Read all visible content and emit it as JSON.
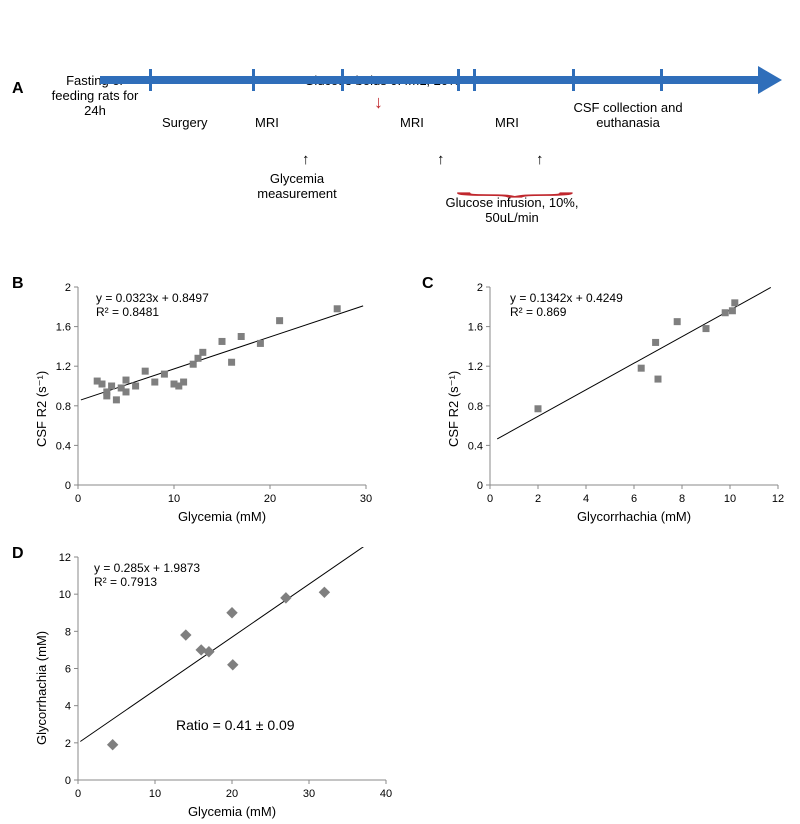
{
  "panelA": {
    "label": "A",
    "tick_positions_pct": [
      8,
      24,
      37,
      55,
      58,
      72,
      85
    ],
    "top_labels": {
      "fasting": "Fasting or\nfeeding  rats\nfor 24h",
      "surgery": "Surgery",
      "mri1": "MRI",
      "bolus": "Glucose bolus 0.4mL, 20%",
      "mri2": "MRI",
      "mri3": "MRI",
      "csf": "CSF collection and\neuthanasia"
    },
    "bottom_labels": {
      "glycemia_measurement": "Glycemia\nmeasurement",
      "glucose_infusion": "Glucose infusion, 10%,\n50uL/min"
    }
  },
  "panelB": {
    "label": "B",
    "type": "scatter",
    "x_label": "Glycemia (mM)",
    "y_label": "CSF R2 (s⁻¹)",
    "xlim": [
      0,
      30
    ],
    "xticks": [
      0,
      10,
      20,
      30
    ],
    "ylim": [
      0,
      2
    ],
    "yticks": [
      0,
      0.4,
      0.8,
      1.2,
      1.6,
      2
    ],
    "marker": "square",
    "marker_color": "#7f7f7f",
    "marker_size": 7,
    "line_color": "#000000",
    "fit": {
      "slope": 0.0323,
      "intercept": 0.8497,
      "r2": 0.8481
    },
    "eq_text": "y = 0.0323x + 0.8497",
    "r2_text": "R² = 0.8481",
    "points": [
      [
        2,
        1.05
      ],
      [
        2.5,
        1.02
      ],
      [
        3,
        0.94
      ],
      [
        3,
        0.9
      ],
      [
        3.5,
        1.0
      ],
      [
        4,
        0.86
      ],
      [
        4.5,
        0.98
      ],
      [
        5,
        0.94
      ],
      [
        5,
        1.06
      ],
      [
        6,
        1.0
      ],
      [
        7,
        1.15
      ],
      [
        8,
        1.04
      ],
      [
        9,
        1.12
      ],
      [
        10,
        1.02
      ],
      [
        10.5,
        1.0
      ],
      [
        11,
        1.04
      ],
      [
        12,
        1.22
      ],
      [
        12.5,
        1.28
      ],
      [
        13,
        1.34
      ],
      [
        15,
        1.45
      ],
      [
        16,
        1.24
      ],
      [
        17,
        1.5
      ],
      [
        19,
        1.43
      ],
      [
        21,
        1.66
      ],
      [
        27,
        1.78
      ]
    ]
  },
  "panelC": {
    "label": "C",
    "type": "scatter",
    "x_label": "Glycorrhachia (mM)",
    "y_label": "CSF R2 (s⁻¹)",
    "xlim": [
      0,
      12
    ],
    "xticks": [
      0,
      2,
      4,
      6,
      8,
      10,
      12
    ],
    "ylim": [
      0,
      2
    ],
    "yticks": [
      0,
      0.4,
      0.8,
      1.2,
      1.6,
      2
    ],
    "marker": "square",
    "marker_color": "#7f7f7f",
    "marker_size": 7,
    "line_color": "#000000",
    "fit": {
      "slope": 0.1342,
      "intercept": 0.4249,
      "r2": 0.869
    },
    "eq_text": "y = 0.1342x + 0.4249",
    "r2_text": "R² = 0.869",
    "points": [
      [
        2,
        0.77
      ],
      [
        6.3,
        1.18
      ],
      [
        6.9,
        1.44
      ],
      [
        7.0,
        1.07
      ],
      [
        7.8,
        1.65
      ],
      [
        9.0,
        1.58
      ],
      [
        9.8,
        1.74
      ],
      [
        10.1,
        1.76
      ],
      [
        10.2,
        1.84
      ]
    ]
  },
  "panelD": {
    "label": "D",
    "type": "scatter",
    "x_label": "Glycemia (mM)",
    "y_label": "Glycorrhachia (mM)",
    "xlim": [
      0,
      40
    ],
    "xticks": [
      0,
      10,
      20,
      30,
      40
    ],
    "ylim": [
      0,
      12
    ],
    "yticks": [
      0,
      2,
      4,
      6,
      8,
      10,
      12
    ],
    "marker": "diamond",
    "marker_color": "#7f7f7f",
    "marker_size": 8,
    "line_color": "#000000",
    "fit": {
      "slope": 0.285,
      "intercept": 1.9873,
      "r2": 0.7913
    },
    "eq_text": "y = 0.285x + 1.9873",
    "r2_text": "R² = 0.7913",
    "ratio_text": "Ratio = 0.41 ± 0.09",
    "points": [
      [
        4.5,
        1.9
      ],
      [
        14,
        7.8
      ],
      [
        16,
        7.0
      ],
      [
        17,
        6.9
      ],
      [
        20,
        9.0
      ],
      [
        20.1,
        6.2
      ],
      [
        27,
        9.8
      ],
      [
        32,
        10.1
      ]
    ]
  },
  "colors": {
    "timeline_bar": "#2f6eba",
    "red": "#c0272d",
    "marker": "#7f7f7f",
    "axis": "#888888",
    "text": "#000000",
    "bg": "#ffffff"
  },
  "fonts": {
    "axis_label_pt": 13,
    "tick_label_pt": 11,
    "eq_pt": 12,
    "panel_label_pt": 16
  }
}
